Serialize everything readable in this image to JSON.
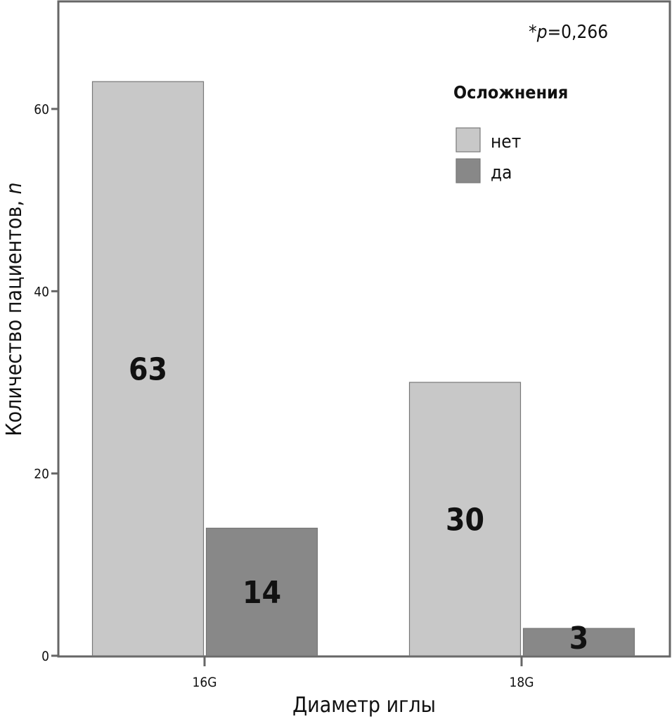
{
  "chart_data": {
    "type": "bar",
    "title": "",
    "annotation": "*p=0,266",
    "annotation_prefix": "*",
    "annotation_italic": "p",
    "annotation_rest": "=0,266",
    "xlabel": "Диаметр иглы",
    "ylabel": "Количество пациентов, ",
    "ylabel_italic": "n",
    "categories": [
      "16G",
      "18G"
    ],
    "ylim": [
      0,
      70
    ],
    "yticks": [
      0,
      20,
      40,
      60
    ],
    "grid": false,
    "legend": {
      "title": "Осложнения",
      "placement": "top-right"
    },
    "series": [
      {
        "name": "нет",
        "values": [
          63,
          30
        ],
        "color": "#c8c8c8"
      },
      {
        "name": "да",
        "values": [
          14,
          3
        ],
        "color": "#888888"
      }
    ]
  }
}
